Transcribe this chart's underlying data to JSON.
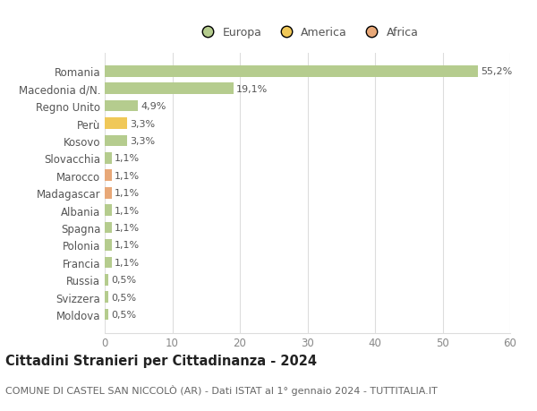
{
  "categories": [
    "Moldova",
    "Svizzera",
    "Russia",
    "Francia",
    "Polonia",
    "Spagna",
    "Albania",
    "Madagascar",
    "Marocco",
    "Slovacchia",
    "Kosovo",
    "Perù",
    "Regno Unito",
    "Macedonia d/N.",
    "Romania"
  ],
  "values": [
    0.5,
    0.5,
    0.5,
    1.1,
    1.1,
    1.1,
    1.1,
    1.1,
    1.1,
    1.1,
    3.3,
    3.3,
    4.9,
    19.1,
    55.2
  ],
  "labels": [
    "0,5%",
    "0,5%",
    "0,5%",
    "1,1%",
    "1,1%",
    "1,1%",
    "1,1%",
    "1,1%",
    "1,1%",
    "1,1%",
    "3,3%",
    "3,3%",
    "4,9%",
    "19,1%",
    "55,2%"
  ],
  "colors": [
    "#b5cc8e",
    "#b5cc8e",
    "#b5cc8e",
    "#b5cc8e",
    "#b5cc8e",
    "#b5cc8e",
    "#b5cc8e",
    "#e8a878",
    "#e8a878",
    "#b5cc8e",
    "#b5cc8e",
    "#f0c858",
    "#b5cc8e",
    "#b5cc8e",
    "#b5cc8e"
  ],
  "legend": [
    {
      "label": "Europa",
      "color": "#b5cc8e"
    },
    {
      "label": "America",
      "color": "#f0c858"
    },
    {
      "label": "Africa",
      "color": "#e8a878"
    }
  ],
  "title": "Cittadini Stranieri per Cittadinanza - 2024",
  "subtitle": "COMUNE DI CASTEL SAN NICCOLÒ (AR) - Dati ISTAT al 1° gennaio 2024 - TUTTITALIA.IT",
  "xlim": [
    0,
    60
  ],
  "xticks": [
    0,
    10,
    20,
    30,
    40,
    50,
    60
  ],
  "background_color": "#ffffff",
  "grid_color": "#dddddd",
  "bar_height": 0.65,
  "title_fontsize": 10.5,
  "subtitle_fontsize": 8,
  "tick_fontsize": 8.5,
  "label_fontsize": 8,
  "legend_fontsize": 9
}
